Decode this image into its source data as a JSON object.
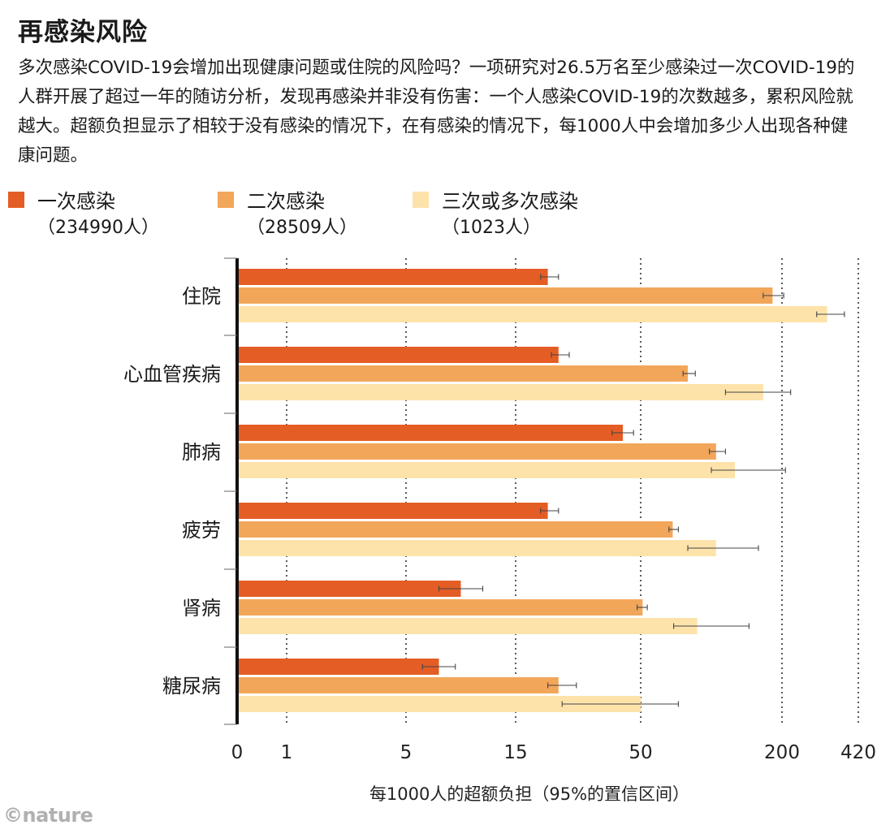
{
  "title": "再感染风险",
  "subtitle": "多次感染COVID-19会增加出现健康问题或住院的风险吗？一项研究对26.5万名至少感染过一次COVID-19的人群开展了超过一年的随访分析，发现再感染并非没有伤害：一个人感染COVID-19的次数越多，累积风险就越大。超额负担显示了相较于没有感染的情况下，在有感染的情况下，每1000人中会增加多少人出现各种健康问题。",
  "credit": "©nature",
  "legend": [
    {
      "name": "一次感染",
      "count": "（234990人）",
      "color": "#e45d25"
    },
    {
      "name": "二次感染",
      "count": "（28509人）",
      "color": "#f2a65a"
    },
    {
      "name": "三次或多次感染",
      "count": "（1023人）",
      "color": "#fde3aa"
    }
  ],
  "chart_data": {
    "type": "bar",
    "orientation": "horizontal",
    "xscale": "nonlinear (ticks unevenly spaced)",
    "xlabel": "每1000人的超额负担（95%的置信区间）",
    "xticks": [
      "0",
      "1",
      "5",
      "15",
      "50",
      "200",
      "420"
    ],
    "xtick_values": [
      0,
      1,
      5,
      15,
      50,
      200,
      420
    ],
    "xlim": [
      0,
      420
    ],
    "grid": "vertical dotted lines at each tick",
    "categories": [
      "住院",
      "心血管疾病",
      "肺病",
      "疲劳",
      "肾病",
      "糖尿病"
    ],
    "series": [
      {
        "name": "一次感染",
        "values": [
          24,
          27,
          45,
          24,
          10,
          8
        ],
        "ci_low": [
          22,
          25,
          42,
          22,
          8,
          6.5
        ],
        "ci_high": [
          27,
          30,
          48,
          27,
          12,
          9.5
        ]
      },
      {
        "name": "二次感染",
        "values": [
          190,
          100,
          130,
          84,
          52,
          27
        ],
        "ci_low": [
          180,
          95,
          123,
          80,
          49,
          24
        ],
        "ci_high": [
          205,
          108,
          140,
          90,
          57,
          32
        ]
      },
      {
        "name": "三次或多次感染",
        "values": [
          330,
          180,
          150,
          130,
          110,
          50
        ],
        "ci_low": [
          300,
          140,
          125,
          100,
          85,
          28
        ],
        "ci_high": [
          380,
          225,
          210,
          175,
          165,
          90
        ]
      }
    ],
    "error_bars": true
  }
}
